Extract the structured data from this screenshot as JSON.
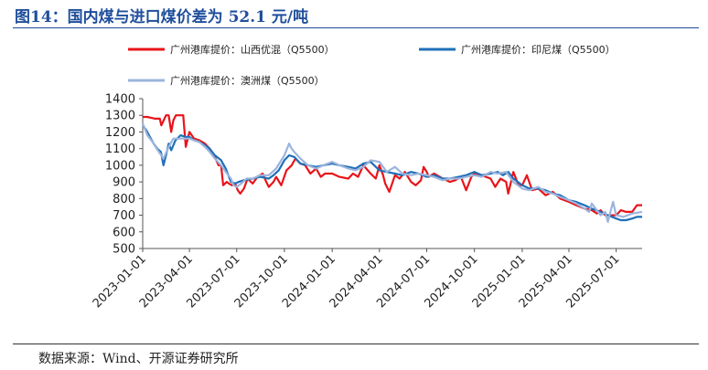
{
  "title": "图14：国内煤与进口煤价差为 52.1 元/吨",
  "source": "数据来源：Wind、开源证券研究所",
  "chart_data": {
    "type": "line",
    "ylim": [
      500,
      1400
    ],
    "yticks": [
      500,
      600,
      700,
      800,
      900,
      1000,
      1100,
      1200,
      1300,
      1400
    ],
    "x_start": "2023-01-01",
    "x_end": "2025-08-20",
    "xticks": [
      "2023-01-01",
      "2023-04-01",
      "2023-07-01",
      "2023-10-01",
      "2024-01-01",
      "2024-04-01",
      "2024-07-01",
      "2024-10-01",
      "2025-01-01",
      "2025-04-01",
      "2025-07-01"
    ],
    "series": [
      {
        "name": "广州港库提价：山西优混（Q5500）",
        "color": "#e8141a",
        "dates": [
          "2023-01-01",
          "2023-01-10",
          "2023-01-25",
          "2023-02-03",
          "2023-02-06",
          "2023-02-15",
          "2023-02-20",
          "2023-02-25",
          "2023-03-01",
          "2023-03-06",
          "2023-03-12",
          "2023-03-20",
          "2023-03-25",
          "2023-04-01",
          "2023-04-10",
          "2023-04-20",
          "2023-05-01",
          "2023-05-10",
          "2023-05-20",
          "2023-05-27",
          "2023-06-01",
          "2023-06-05",
          "2023-06-12",
          "2023-06-16",
          "2023-06-22",
          "2023-06-28",
          "2023-07-03",
          "2023-07-08",
          "2023-07-15",
          "2023-07-22",
          "2023-08-01",
          "2023-08-10",
          "2023-08-20",
          "2023-08-27",
          "2023-09-01",
          "2023-09-10",
          "2023-09-15",
          "2023-09-25",
          "2023-10-05",
          "2023-10-15",
          "2023-10-22",
          "2023-11-01",
          "2023-11-10",
          "2023-11-20",
          "2023-12-01",
          "2023-12-10",
          "2023-12-18",
          "2024-01-01",
          "2024-01-15",
          "2024-02-01",
          "2024-02-10",
          "2024-02-20",
          "2024-03-01",
          "2024-03-15",
          "2024-03-25",
          "2024-04-01",
          "2024-04-08",
          "2024-04-12",
          "2024-04-20",
          "2024-05-01",
          "2024-05-10",
          "2024-05-20",
          "2024-06-01",
          "2024-06-10",
          "2024-06-20",
          "2024-06-25",
          "2024-07-01",
          "2024-07-05",
          "2024-07-15",
          "2024-08-01",
          "2024-08-15",
          "2024-08-25",
          "2024-09-05",
          "2024-09-15",
          "2024-09-25",
          "2024-10-01",
          "2024-10-15",
          "2024-11-01",
          "2024-11-10",
          "2024-11-20",
          "2024-12-01",
          "2024-12-05",
          "2024-12-15",
          "2024-12-25",
          "2025-01-01",
          "2025-01-10",
          "2025-01-20",
          "2025-02-01",
          "2025-02-15",
          "2025-03-01",
          "2025-03-15",
          "2025-04-01",
          "2025-04-15",
          "2025-05-01",
          "2025-05-15",
          "2025-05-25",
          "2025-06-01",
          "2025-06-10",
          "2025-06-20",
          "2025-07-01",
          "2025-07-10",
          "2025-07-20",
          "2025-08-01",
          "2025-08-10",
          "2025-08-20"
        ],
        "values": [
          1290,
          1290,
          1280,
          1280,
          1240,
          1300,
          1300,
          1200,
          1270,
          1300,
          1300,
          1300,
          1110,
          1200,
          1160,
          1150,
          1130,
          1100,
          1050,
          1000,
          1000,
          880,
          900,
          890,
          880,
          890,
          850,
          830,
          860,
          920,
          890,
          930,
          950,
          900,
          870,
          900,
          930,
          880,
          970,
          1000,
          1040,
          1010,
          1000,
          950,
          980,
          930,
          950,
          950,
          930,
          920,
          950,
          930,
          1000,
          950,
          920,
          1000,
          940,
          890,
          840,
          940,
          920,
          960,
          900,
          880,
          910,
          990,
          960,
          930,
          950,
          920,
          900,
          910,
          930,
          850,
          930,
          950,
          940,
          920,
          870,
          920,
          900,
          830,
          960,
          880,
          880,
          940,
          850,
          860,
          820,
          840,
          800,
          780,
          760,
          740,
          730,
          710,
          730,
          700,
          700,
          700,
          730,
          720,
          720,
          760,
          760
        ]
      },
      {
        "name": "广州港库提价：印尼煤（Q5500）",
        "color": "#1f6fb8",
        "dates": [
          "2023-01-01",
          "2023-01-08",
          "2023-01-15",
          "2023-01-22",
          "2023-01-29",
          "2023-02-05",
          "2023-02-10",
          "2023-02-15",
          "2023-02-20",
          "2023-02-25",
          "2023-03-05",
          "2023-03-15",
          "2023-03-25",
          "2023-04-01",
          "2023-04-10",
          "2023-04-20",
          "2023-05-01",
          "2023-05-10",
          "2023-05-20",
          "2023-06-01",
          "2023-06-10",
          "2023-06-15",
          "2023-06-20",
          "2023-06-28",
          "2023-07-05",
          "2023-07-15",
          "2023-08-01",
          "2023-08-15",
          "2023-09-01",
          "2023-09-10",
          "2023-09-20",
          "2023-10-01",
          "2023-10-10",
          "2023-10-20",
          "2023-11-01",
          "2023-11-15",
          "2023-12-01",
          "2023-12-15",
          "2024-01-01",
          "2024-01-15",
          "2024-02-01",
          "2024-02-15",
          "2024-03-01",
          "2024-03-15",
          "2024-04-01",
          "2024-04-15",
          "2024-05-01",
          "2024-05-15",
          "2024-06-01",
          "2024-06-15",
          "2024-07-01",
          "2024-07-15",
          "2024-08-01",
          "2024-08-15",
          "2024-09-01",
          "2024-09-15",
          "2024-10-01",
          "2024-10-15",
          "2024-11-01",
          "2024-11-15",
          "2024-11-25",
          "2024-12-05",
          "2024-12-15",
          "2025-01-01",
          "2025-01-15",
          "2025-02-01",
          "2025-02-15",
          "2025-03-01",
          "2025-03-15",
          "2025-04-01",
          "2025-04-15",
          "2025-05-01",
          "2025-05-15",
          "2025-06-01",
          "2025-06-15",
          "2025-07-01",
          "2025-07-10",
          "2025-07-20",
          "2025-08-01",
          "2025-08-10",
          "2025-08-20"
        ],
        "values": [
          1240,
          1210,
          1170,
          1130,
          1100,
          1080,
          1000,
          1060,
          1130,
          1090,
          1150,
          1180,
          1170,
          1170,
          1150,
          1140,
          1120,
          1100,
          1060,
          1030,
          980,
          940,
          900,
          890,
          900,
          910,
          920,
          930,
          920,
          940,
          970,
          1030,
          1060,
          1050,
          1010,
          1000,
          990,
          1000,
          1010,
          1000,
          990,
          980,
          1010,
          1020,
          970,
          960,
          950,
          940,
          960,
          950,
          930,
          940,
          920,
          920,
          930,
          940,
          960,
          940,
          950,
          960,
          940,
          960,
          920,
          880,
          860,
          860,
          850,
          830,
          820,
          790,
          780,
          760,
          740,
          720,
          700,
          680,
          670,
          670,
          680,
          690,
          690
        ]
      },
      {
        "name": "广州港库提价：澳洲煤（Q5500）",
        "color": "#9cb4dc",
        "dates": [
          "2023-01-01",
          "2023-01-10",
          "2023-01-20",
          "2023-01-30",
          "2023-02-10",
          "2023-02-20",
          "2023-03-01",
          "2023-03-10",
          "2023-03-20",
          "2023-04-01",
          "2023-04-10",
          "2023-04-20",
          "2023-05-01",
          "2023-05-10",
          "2023-05-20",
          "2023-06-01",
          "2023-06-10",
          "2023-06-20",
          "2023-06-25",
          "2023-07-01",
          "2023-07-10",
          "2023-07-20",
          "2023-08-01",
          "2023-08-15",
          "2023-09-01",
          "2023-09-15",
          "2023-10-01",
          "2023-10-10",
          "2023-10-15",
          "2023-10-20",
          "2023-11-01",
          "2023-11-15",
          "2023-12-01",
          "2023-12-15",
          "2024-01-01",
          "2024-01-15",
          "2024-02-01",
          "2024-02-15",
          "2024-03-01",
          "2024-03-15",
          "2024-04-01",
          "2024-04-15",
          "2024-05-01",
          "2024-05-15",
          "2024-06-01",
          "2024-06-15",
          "2024-07-01",
          "2024-07-15",
          "2024-08-01",
          "2024-08-15",
          "2024-09-01",
          "2024-09-15",
          "2024-10-01",
          "2024-10-15",
          "2024-11-01",
          "2024-11-15",
          "2024-12-01",
          "2024-12-15",
          "2025-01-01",
          "2025-01-15",
          "2025-02-01",
          "2025-02-15",
          "2025-03-01",
          "2025-03-15",
          "2025-04-01",
          "2025-04-15",
          "2025-05-01",
          "2025-05-10",
          "2025-05-15",
          "2025-06-01",
          "2025-06-10",
          "2025-06-15",
          "2025-06-25",
          "2025-07-01",
          "2025-07-15",
          "2025-08-01",
          "2025-08-20"
        ],
        "values": [
          1250,
          1180,
          1140,
          1090,
          1040,
          1110,
          1160,
          1160,
          1160,
          1160,
          1150,
          1140,
          1110,
          1080,
          1040,
          1000,
          960,
          920,
          880,
          870,
          890,
          920,
          920,
          940,
          940,
          980,
          1060,
          1130,
          1100,
          1080,
          1040,
          1000,
          980,
          1000,
          1020,
          1000,
          980,
          970,
          990,
          1030,
          1020,
          960,
          990,
          950,
          940,
          950,
          940,
          930,
          910,
          920,
          920,
          930,
          940,
          930,
          960,
          950,
          960,
          900,
          860,
          850,
          870,
          840,
          830,
          810,
          790,
          770,
          740,
          720,
          770,
          700,
          720,
          660,
          780,
          700,
          690,
          710,
          720
        ]
      }
    ]
  }
}
